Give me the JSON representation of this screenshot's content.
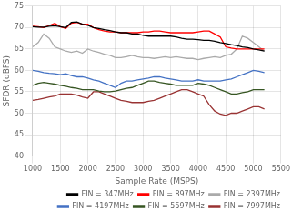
{
  "chart_data": {
    "type": "line",
    "xlabel": "Sample Rate (MSPS)",
    "ylabel": "SFDR (dBFS)",
    "xlim": [
      1000,
      5500
    ],
    "ylim": [
      40,
      75
    ],
    "xticks": [
      1000,
      1500,
      2000,
      2500,
      3000,
      3500,
      4000,
      4500,
      5000,
      5500
    ],
    "yticks": [
      40,
      45,
      50,
      55,
      60,
      65,
      70,
      75
    ],
    "grid": true,
    "legend": "lower right",
    "x": [
      1000,
      1100,
      1200,
      1300,
      1400,
      1500,
      1600,
      1700,
      1800,
      1900,
      2000,
      2100,
      2200,
      2300,
      2400,
      2500,
      2600,
      2700,
      2800,
      2900,
      3000,
      3100,
      3200,
      3300,
      3400,
      3500,
      3600,
      3700,
      3800,
      3900,
      4000,
      4100,
      4200,
      4300,
      4400,
      4500,
      4600,
      4700,
      4800,
      4900,
      5000,
      5100,
      5200
    ],
    "series": [
      {
        "name": "FIN = 347MHz",
        "color": "#000000",
        "values": [
          70.2,
          70.1,
          70.1,
          70.3,
          70.4,
          70.2,
          70.0,
          71.2,
          71.3,
          70.8,
          70.5,
          70.0,
          69.8,
          69.5,
          69.3,
          69.0,
          68.8,
          68.8,
          68.5,
          68.5,
          68.2,
          68.0,
          68.0,
          68.0,
          68.0,
          68.0,
          67.8,
          67.5,
          67.3,
          67.3,
          67.2,
          67.0,
          67.0,
          66.8,
          66.5,
          66.3,
          66.0,
          65.8,
          65.5,
          65.3,
          65.0,
          64.8,
          64.5
        ]
      },
      {
        "name": "FIN = 897MHz",
        "color": "#ff0000",
        "values": [
          70.3,
          70.2,
          70.0,
          70.5,
          71.0,
          70.2,
          69.8,
          71.0,
          71.2,
          70.8,
          70.8,
          70.0,
          69.5,
          69.2,
          69.0,
          69.0,
          68.8,
          68.8,
          68.8,
          68.8,
          69.0,
          69.0,
          69.2,
          69.2,
          69.0,
          68.8,
          68.8,
          68.8,
          68.8,
          68.8,
          69.0,
          69.2,
          69.2,
          68.5,
          67.8,
          65.5,
          65.2,
          65.0,
          65.0,
          65.0,
          65.0,
          65.0,
          65.0
        ]
      },
      {
        "name": "FIN = 2397MHz",
        "color": "#aaaaaa",
        "values": [
          65.5,
          66.5,
          68.5,
          67.5,
          65.5,
          65.0,
          64.5,
          64.2,
          64.5,
          64.0,
          65.0,
          64.5,
          64.2,
          63.8,
          63.5,
          63.0,
          63.0,
          63.2,
          63.5,
          63.2,
          63.0,
          63.0,
          62.8,
          63.0,
          63.2,
          63.0,
          63.2,
          63.0,
          62.8,
          62.8,
          62.5,
          62.8,
          63.0,
          63.2,
          63.0,
          63.5,
          63.8,
          65.0,
          68.0,
          67.5,
          66.5,
          65.5,
          64.5
        ]
      },
      {
        "name": "FIN = 4197MHz",
        "color": "#4472c4",
        "values": [
          60.0,
          59.8,
          59.5,
          59.3,
          59.2,
          59.0,
          59.2,
          58.8,
          58.5,
          58.5,
          58.2,
          57.8,
          57.5,
          57.0,
          56.5,
          56.0,
          57.0,
          57.5,
          57.5,
          57.8,
          58.0,
          58.2,
          58.5,
          58.5,
          58.2,
          58.0,
          57.8,
          57.5,
          57.5,
          57.5,
          57.8,
          57.5,
          57.5,
          57.5,
          57.5,
          57.8,
          58.0,
          58.5,
          59.0,
          59.5,
          60.0,
          59.8,
          59.5
        ]
      },
      {
        "name": "FIN = 5597MHz",
        "color": "#375623",
        "values": [
          56.5,
          57.0,
          57.2,
          57.0,
          56.8,
          56.5,
          56.3,
          56.0,
          55.8,
          55.5,
          55.5,
          55.5,
          55.2,
          55.0,
          55.0,
          55.2,
          55.5,
          55.8,
          56.0,
          56.5,
          57.0,
          57.5,
          57.5,
          57.2,
          57.0,
          56.8,
          56.5,
          56.5,
          56.5,
          56.5,
          57.0,
          56.8,
          56.5,
          56.0,
          55.5,
          55.0,
          54.5,
          54.5,
          54.8,
          55.0,
          55.5,
          55.5,
          55.5
        ]
      },
      {
        "name": "FIN = 7997MHz",
        "color": "#993333",
        "values": [
          53.0,
          53.2,
          53.5,
          53.8,
          54.0,
          54.5,
          54.5,
          54.5,
          54.2,
          53.8,
          53.5,
          55.0,
          55.0,
          54.5,
          54.0,
          53.5,
          53.0,
          52.8,
          52.5,
          52.5,
          52.5,
          52.8,
          53.0,
          53.5,
          54.0,
          54.5,
          55.0,
          55.5,
          55.5,
          55.0,
          54.5,
          54.0,
          52.0,
          50.5,
          49.8,
          49.5,
          50.0,
          50.0,
          50.5,
          51.0,
          51.5,
          51.5,
          51.0
        ]
      }
    ]
  }
}
